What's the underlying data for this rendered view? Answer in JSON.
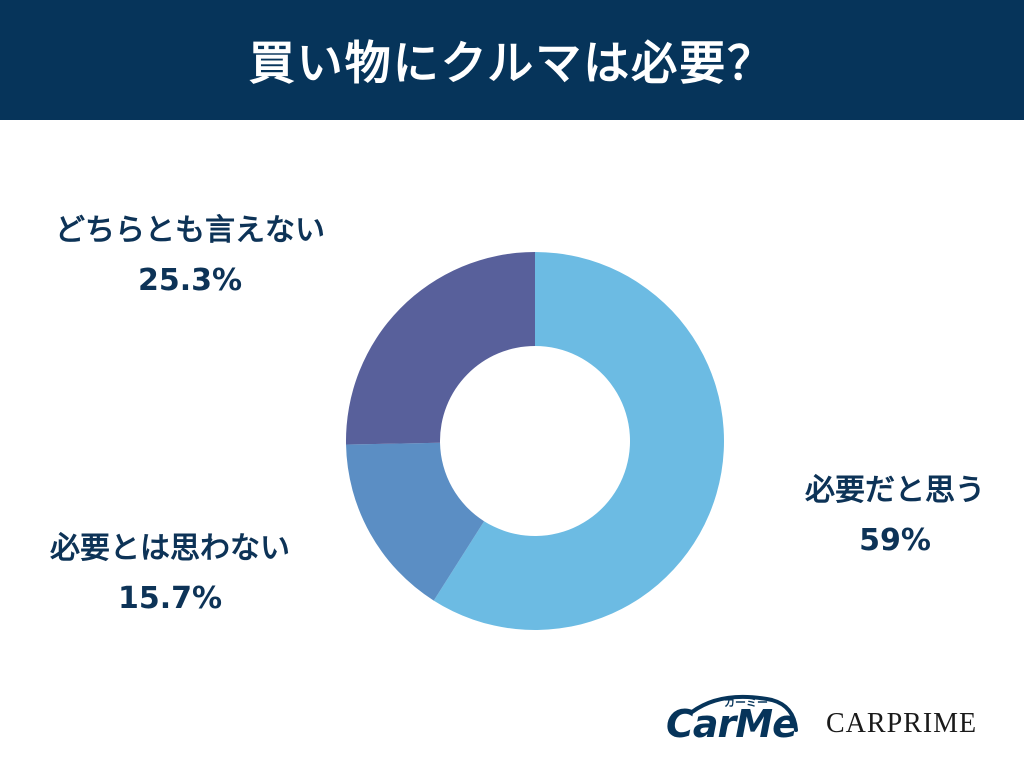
{
  "header": {
    "title": "買い物にクルマは必要？"
  },
  "chart_data": {
    "type": "pie",
    "title": "買い物にクルマは必要？",
    "categories": [
      "必要だと思う",
      "必要とは思わない",
      "どちらとも言えない"
    ],
    "values": [
      59,
      15.7,
      25.3
    ],
    "value_labels": [
      "59%",
      "15.7%",
      "25.3%"
    ],
    "colors": [
      "#6cbbe3",
      "#5b8ec4",
      "#58609b"
    ],
    "donut": true,
    "start_angle": "12 o'clock",
    "direction": "clockwise"
  },
  "logos": {
    "carme_kana": "カーミー",
    "carme": "CarMe",
    "carprime": "CARPRIME"
  }
}
